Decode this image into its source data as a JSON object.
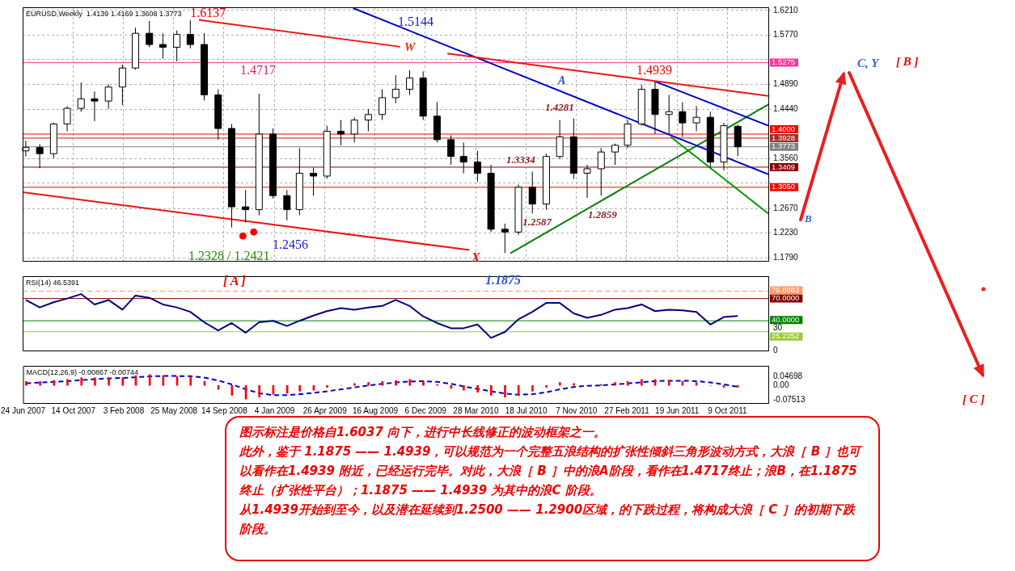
{
  "chart_data": [
    {
      "type": "candlestick",
      "title": "EURUSD,Weekly  1.4139 1.4169 1.3608 1.3773",
      "x": [
        "2007-07",
        "2007-08",
        "2007-09",
        "2007-10",
        "2007-11",
        "2007-12",
        "2008-01",
        "2008-02",
        "2008-03",
        "2008-04",
        "2008-05",
        "2008-06",
        "2008-07",
        "2008-08",
        "2008-09",
        "2008-10",
        "2008-11",
        "2008-12",
        "2009-01",
        "2009-02",
        "2009-03",
        "2009-04",
        "2009-05",
        "2009-06",
        "2009-07",
        "2009-08",
        "2009-09",
        "2009-10",
        "2009-11",
        "2009-12",
        "2010-01",
        "2010-02",
        "2010-03",
        "2010-04",
        "2010-05",
        "2010-06",
        "2010-07",
        "2010-08",
        "2010-09",
        "2010-10",
        "2010-11",
        "2010-12",
        "2011-01",
        "2011-02",
        "2011-03",
        "2011-04",
        "2011-05",
        "2011-06",
        "2011-07",
        "2011-08",
        "2011-09",
        "2011-10",
        "2011-11"
      ],
      "ohlc": [
        [
          1.37,
          1.388,
          1.36,
          1.376
        ],
        [
          1.376,
          1.382,
          1.339,
          1.365
        ],
        [
          1.365,
          1.42,
          1.357,
          1.418
        ],
        [
          1.418,
          1.45,
          1.405,
          1.446
        ],
        [
          1.446,
          1.492,
          1.44,
          1.463
        ],
        [
          1.463,
          1.476,
          1.423,
          1.459
        ],
        [
          1.459,
          1.489,
          1.445,
          1.484
        ],
        [
          1.484,
          1.524,
          1.452,
          1.518
        ],
        [
          1.518,
          1.59,
          1.515,
          1.58
        ],
        [
          1.58,
          1.602,
          1.555,
          1.56
        ],
        [
          1.56,
          1.58,
          1.535,
          1.555
        ],
        [
          1.555,
          1.585,
          1.53,
          1.578
        ],
        [
          1.578,
          1.6037,
          1.553,
          1.56
        ],
        [
          1.56,
          1.58,
          1.46,
          1.47
        ],
        [
          1.47,
          1.48,
          1.39,
          1.41
        ],
        [
          1.41,
          1.418,
          1.233,
          1.27
        ],
        [
          1.27,
          1.3,
          1.242,
          1.265
        ],
        [
          1.265,
          1.472,
          1.255,
          1.4
        ],
        [
          1.4,
          1.41,
          1.285,
          1.29
        ],
        [
          1.29,
          1.3,
          1.246,
          1.265
        ],
        [
          1.265,
          1.375,
          1.255,
          1.33
        ],
        [
          1.33,
          1.34,
          1.29,
          1.325
        ],
        [
          1.325,
          1.415,
          1.32,
          1.405
        ],
        [
          1.405,
          1.425,
          1.38,
          1.4
        ],
        [
          1.4,
          1.43,
          1.385,
          1.425
        ],
        [
          1.425,
          1.445,
          1.405,
          1.435
        ],
        [
          1.435,
          1.48,
          1.425,
          1.465
        ],
        [
          1.465,
          1.505,
          1.455,
          1.48
        ],
        [
          1.48,
          1.514,
          1.47,
          1.5
        ],
        [
          1.5,
          1.512,
          1.425,
          1.432
        ],
        [
          1.432,
          1.457,
          1.385,
          1.39
        ],
        [
          1.39,
          1.398,
          1.345,
          1.36
        ],
        [
          1.36,
          1.385,
          1.33,
          1.35
        ],
        [
          1.35,
          1.37,
          1.315,
          1.33
        ],
        [
          1.33,
          1.345,
          1.225,
          1.23
        ],
        [
          1.23,
          1.24,
          1.1875,
          1.225
        ],
        [
          1.225,
          1.31,
          1.22,
          1.305
        ],
        [
          1.305,
          1.333,
          1.258,
          1.275
        ],
        [
          1.275,
          1.365,
          1.265,
          1.36
        ],
        [
          1.36,
          1.425,
          1.355,
          1.395
        ],
        [
          1.395,
          1.428,
          1.32,
          1.33
        ],
        [
          1.33,
          1.345,
          1.286,
          1.338
        ],
        [
          1.338,
          1.375,
          1.29,
          1.368
        ],
        [
          1.368,
          1.383,
          1.345,
          1.38
        ],
        [
          1.38,
          1.425,
          1.375,
          1.418
        ],
        [
          1.418,
          1.488,
          1.415,
          1.48
        ],
        [
          1.48,
          1.4939,
          1.4,
          1.435
        ],
        [
          1.435,
          1.47,
          1.4,
          1.44
        ],
        [
          1.44,
          1.457,
          1.395,
          1.42
        ],
        [
          1.42,
          1.45,
          1.405,
          1.43
        ],
        [
          1.43,
          1.44,
          1.34,
          1.35
        ],
        [
          1.35,
          1.42,
          1.335,
          1.415
        ],
        [
          1.4139,
          1.4169,
          1.3608,
          1.3773
        ]
      ],
      "series": [
        {
          "type": "line",
          "color": "#f01414",
          "x": [
            "2008-07-20",
            "2009-10-11"
          ],
          "values": [
            1.604,
            1.556
          ]
        },
        {
          "type": "line",
          "color": "#f01414",
          "x": [
            "2010-01-24",
            "2012-01-08"
          ],
          "values": [
            1.544,
            1.468
          ]
        },
        {
          "type": "line",
          "color": "#f01414",
          "x": [
            "2007-06-24",
            "2010-03-14"
          ],
          "values": [
            1.296,
            1.193
          ]
        },
        {
          "type": "line",
          "color": "#0000cc",
          "x": [
            "2009-06-28",
            "2012-01-08"
          ],
          "values": [
            1.625,
            1.328
          ]
        },
        {
          "type": "line",
          "color": "#0000cc",
          "x": [
            "2011-05-01",
            "2012-01-08"
          ],
          "values": [
            1.494,
            1.415
          ]
        },
        {
          "type": "line",
          "color": "#008000",
          "x": [
            "2010-06-13",
            "2012-01-08"
          ],
          "values": [
            1.187,
            1.453
          ]
        },
        {
          "type": "line",
          "color": "#009900",
          "x": [
            "2011-06-05",
            "2012-01-08"
          ],
          "values": [
            1.395,
            1.258
          ]
        },
        {
          "type": "scatter",
          "color": "#ff0000",
          "marker": "circle",
          "x": [
            "2008-10-26",
            "2008-11-19"
          ],
          "values": [
            1.218,
            1.225
          ]
        }
      ],
      "ref_lines": [
        {
          "axis": "y",
          "value": 1.5275,
          "label": "1.5275",
          "color": "#ff3399"
        },
        {
          "axis": "y",
          "value": 1.4,
          "label": "1.4000",
          "color": "#ff0000"
        },
        {
          "axis": "y",
          "value": 1.3928,
          "label": "1.3928",
          "color": "#a52a2a"
        },
        {
          "axis": "y",
          "value": 1.3773,
          "label": "1.3773",
          "color": "#808080"
        },
        {
          "axis": "y",
          "value": 1.3409,
          "label": "1.3409",
          "color": "#8b0000"
        },
        {
          "axis": "y",
          "value": 1.305,
          "label": "1.3050",
          "color": "#ff0000"
        }
      ],
      "annotations": [
        {
          "text": "1.6137",
          "x": "2008-07",
          "y": 1.6037
        },
        "1.4717",
        "W",
        "1.5144",
        "A",
        {
          "text": "1.4939",
          "x": "2011-05",
          "y": 1.4939
        },
        "1.4281",
        "1.3334",
        {
          "text": "1.2587",
          "x": "2010-08",
          "y": 1.258
        },
        "1.2859",
        "1.2456",
        "1.2328 / 1.2421",
        "X",
        "1.1875",
        "[ A ]",
        "C, Y",
        "[ B ]",
        "B",
        "[ C ]"
      ],
      "xlim": [
        "2007-06-24",
        "2012-01-08"
      ],
      "xticks": [
        {
          "value": "2007-06-24",
          "label": null
        },
        {
          "value": "2007-10-14",
          "label": null
        },
        {
          "value": "2008-02-03",
          "label": null
        },
        {
          "value": "2008-05-25",
          "label": null
        },
        {
          "value": "2008-09-14",
          "label": null
        },
        {
          "value": "2009-01-04",
          "label": null
        },
        {
          "value": "2009-04-26",
          "label": null
        },
        {
          "value": "2009-08-16",
          "label": null
        },
        {
          "value": "2009-12-06",
          "label": null
        },
        {
          "value": "2010-03-28",
          "label": null
        },
        {
          "value": "2010-07-18",
          "label": null
        },
        {
          "value": "2010-11-07",
          "label": null
        },
        {
          "value": "2011-02-27",
          "label": null
        },
        {
          "value": "2011-06-19",
          "label": null
        },
        {
          "value": "2011-10-09",
          "label": null
        }
      ],
      "ylim": [
        1.1735,
        1.6265
      ],
      "yticks": [
        {
          "value": 1.621,
          "label": "1.6210"
        },
        {
          "value": 1.577,
          "label": "1.5770"
        },
        {
          "value": 1.533,
          "label": null
        },
        {
          "value": 1.489,
          "label": "1.4890"
        },
        {
          "value": 1.444,
          "label": "1.4440"
        },
        {
          "value": 1.356,
          "label": "1.3560"
        },
        {
          "value": 1.312,
          "label": null
        },
        {
          "value": 1.267,
          "label": "1.2670"
        },
        {
          "value": 1.223,
          "label": "1.2230"
        },
        {
          "value": 1.179,
          "label": "1.1790"
        }
      ],
      "grid": true,
      "tick_labels": "y"
    },
    {
      "type": "line",
      "title": "RSI(14) 46.5391",
      "x": [
        "2007-07",
        "2007-08",
        "2007-09",
        "2007-10",
        "2007-11",
        "2007-12",
        "2008-01",
        "2008-02",
        "2008-03",
        "2008-04",
        "2008-05",
        "2008-06",
        "2008-07",
        "2008-08",
        "2008-09",
        "2008-10",
        "2008-11",
        "2008-12",
        "2009-01",
        "2009-02",
        "2009-03",
        "2009-04",
        "2009-05",
        "2009-06",
        "2009-07",
        "2009-08",
        "2009-09",
        "2009-10",
        "2009-11",
        "2009-12",
        "2010-01",
        "2010-02",
        "2010-03",
        "2010-04",
        "2010-05",
        "2010-06",
        "2010-07",
        "2010-08",
        "2010-09",
        "2010-10",
        "2010-11",
        "2010-12",
        "2011-01",
        "2011-02",
        "2011-03",
        "2011-04",
        "2011-05",
        "2011-06",
        "2011-07",
        "2011-08",
        "2011-09",
        "2011-10",
        "2011-11"
      ],
      "series": [
        {
          "color": "#000080",
          "values": [
            68,
            58,
            65,
            70,
            76,
            62,
            68,
            55,
            74,
            71,
            62,
            58,
            52,
            38,
            27,
            37,
            24,
            38,
            40,
            33,
            40,
            47,
            53,
            57,
            55,
            58,
            60,
            68,
            60,
            46,
            37,
            30,
            30,
            35,
            17,
            25,
            42,
            52,
            64,
            64,
            50,
            44,
            48,
            55,
            57,
            62,
            53,
            55,
            54,
            52,
            35,
            45,
            46.5
          ]
        }
      ],
      "ref_lines": [
        {
          "axis": "y",
          "value": 79.8883,
          "label": "79.8883",
          "color": "#ff9966",
          "line_style": "dashed"
        },
        {
          "axis": "y",
          "value": 70,
          "label": "70.0000",
          "color": "#800000"
        },
        {
          "axis": "y",
          "value": 40,
          "label": "40.0000",
          "color": "#008000"
        },
        {
          "axis": "y",
          "value": 25.2252,
          "label": "25.2252",
          "color": "#99cc33"
        }
      ],
      "xlim": [
        "2007-06-24",
        "2012-01-08"
      ],
      "xticks": [
        {
          "value": "2007-06-24",
          "label": null
        },
        {
          "value": "2007-10-14",
          "label": null
        },
        {
          "value": "2008-02-03",
          "label": null
        },
        {
          "value": "2008-05-25",
          "label": null
        },
        {
          "value": "2008-09-14",
          "label": null
        },
        {
          "value": "2009-01-04",
          "label": null
        },
        {
          "value": "2009-04-26",
          "label": null
        },
        {
          "value": "2009-08-16",
          "label": null
        },
        {
          "value": "2009-12-06",
          "label": null
        },
        {
          "value": "2010-03-28",
          "label": null
        },
        {
          "value": "2010-07-18",
          "label": null
        },
        {
          "value": "2010-11-07",
          "label": null
        },
        {
          "value": "2011-02-27",
          "label": null
        },
        {
          "value": "2011-06-19",
          "label": null
        },
        {
          "value": "2011-10-09",
          "label": null
        }
      ],
      "ylim": [
        0,
        100
      ],
      "yticks": [
        0,
        30
      ],
      "tick_labels": "y"
    },
    {
      "type": "bar",
      "title": "MACD(12,26,9) -0.00867 -0.00744",
      "x": [
        "2007-07",
        "2007-08",
        "2007-09",
        "2007-10",
        "2007-11",
        "2007-12",
        "2008-01",
        "2008-02",
        "2008-03",
        "2008-04",
        "2008-05",
        "2008-06",
        "2008-07",
        "2008-08",
        "2008-09",
        "2008-10",
        "2008-11",
        "2008-12",
        "2009-01",
        "2009-02",
        "2009-03",
        "2009-04",
        "2009-05",
        "2009-06",
        "2009-07",
        "2009-08",
        "2009-09",
        "2009-10",
        "2009-11",
        "2009-12",
        "2010-01",
        "2010-02",
        "2010-03",
        "2010-04",
        "2010-05",
        "2010-06",
        "2010-07",
        "2010-08",
        "2010-09",
        "2010-10",
        "2010-11",
        "2010-12",
        "2011-01",
        "2011-02",
        "2011-03",
        "2011-04",
        "2011-05",
        "2011-06",
        "2011-07",
        "2011-08",
        "2011-09",
        "2011-10",
        "2011-11"
      ],
      "series": [
        {
          "type": "bar",
          "color": "#ff0000",
          "values": [
            0.02,
            0.02,
            0.025,
            0.03,
            0.04,
            0.04,
            0.04,
            0.04,
            0.05,
            0.055,
            0.05,
            0.045,
            0.045,
            0.02,
            -0.02,
            -0.05,
            -0.07,
            -0.06,
            -0.045,
            -0.04,
            -0.03,
            -0.025,
            -0.01,
            0.0,
            0.01,
            0.015,
            0.02,
            0.025,
            0.03,
            0.02,
            0.005,
            -0.015,
            -0.025,
            -0.035,
            -0.05,
            -0.06,
            -0.05,
            -0.03,
            -0.01,
            0.015,
            0.01,
            0.0,
            0.005,
            0.015,
            0.02,
            0.03,
            0.03,
            0.025,
            0.02,
            0.015,
            0.0,
            -0.01,
            -0.009
          ]
        },
        {
          "type": "line",
          "color": "#0000cc",
          "line_style": "dashed",
          "values": [
            0.01,
            0.015,
            0.018,
            0.022,
            0.027,
            0.032,
            0.036,
            0.038,
            0.042,
            0.046,
            0.048,
            0.048,
            0.047,
            0.04,
            0.025,
            0.005,
            -0.02,
            -0.04,
            -0.05,
            -0.05,
            -0.045,
            -0.038,
            -0.03,
            -0.02,
            -0.01,
            0.0,
            0.008,
            0.015,
            0.02,
            0.022,
            0.018,
            0.008,
            -0.005,
            -0.018,
            -0.03,
            -0.042,
            -0.048,
            -0.045,
            -0.035,
            -0.02,
            -0.008,
            -0.002,
            0.0,
            0.005,
            0.01,
            0.016,
            0.022,
            0.024,
            0.024,
            0.022,
            0.015,
            0.005,
            -0.007
          ]
        }
      ],
      "xlim": [
        "2007-06-24",
        "2012-01-08"
      ],
      "xticks": [
        {
          "value": "2007-06-24",
          "label": "24 Jun 2007"
        },
        {
          "value": "2007-10-14",
          "label": "14 Oct 2007"
        },
        {
          "value": "2008-02-03",
          "label": "3 Feb 2008"
        },
        {
          "value": "2008-05-25",
          "label": "25 May 2008"
        },
        {
          "value": "2008-09-14",
          "label": "14 Sep 2008"
        },
        {
          "value": "2009-01-04",
          "label": "4 Jan 2009"
        },
        {
          "value": "2009-04-26",
          "label": "26 Apr 2009"
        },
        {
          "value": "2009-08-16",
          "label": "16 Aug 2009"
        },
        {
          "value": "2009-12-06",
          "label": "6 Dec 2009"
        },
        {
          "value": "2010-03-28",
          "label": "28 Mar 2010"
        },
        {
          "value": "2010-07-18",
          "label": "18 Jul 2010"
        },
        {
          "value": "2010-11-07",
          "label": "7 Nov 2010"
        },
        {
          "value": "2011-02-27",
          "label": "27 Feb 2011"
        },
        {
          "value": "2011-06-19",
          "label": "19 Jun 2011"
        },
        {
          "value": "2011-10-09",
          "label": "9 Oct 2011"
        }
      ],
      "ylim": [
        -0.09,
        0.1
      ],
      "yticks": [
        {
          "value": 0.04698,
          "label": "0.04698"
        },
        {
          "value": 0,
          "label": "0.00"
        },
        {
          "value": -0.07513,
          "label": "-0.07513"
        }
      ]
    },
    {
      "type": "other",
      "annotations": [
        "图示标注是价格自1.6037 向下，进行中长线修正的波动框架之一。",
        "此外，鉴于 1.1875 —— 1.4939，可以规范为一个完整五浪结构的扩张性倾斜三角形波动方式，大浪［ B ］也可以看作在1.4939 附近，已经运行完毕。对此，大浪［ B ］中的浪A阶段，看作在1.4717终止；浪B，在1.1875终止（扩张性平台）；1.1875 —— 1.4939 为其中的浪C 阶段。",
        "从1.4939开始到至今，以及潜在延续到1.2500 —— 1.2900区域，的下跌过程，将构成大浪［ C ］的初期下跌阶段。"
      ]
    }
  ]
}
